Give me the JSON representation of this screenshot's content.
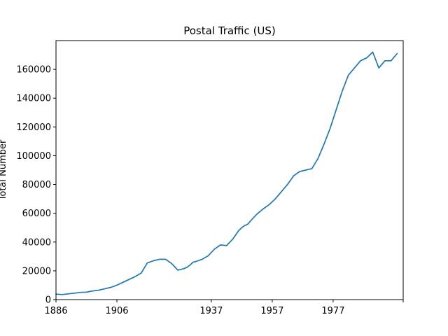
{
  "chart_data": {
    "type": "line",
    "title": "Postal Traffic (US)",
    "xlabel": "",
    "ylabel": "Total Number",
    "line_color": "#1f77b4",
    "grid": false,
    "xlim": [
      1886,
      2000
    ],
    "ylim": [
      0,
      180000
    ],
    "x_ticks": [
      1886,
      1906,
      1937,
      1957,
      1977
    ],
    "x_tick_labels": [
      "1886",
      "1906",
      "1937",
      "1957",
      "1977"
    ],
    "x_extra_tick": 2000,
    "y_ticks": [
      0,
      20000,
      40000,
      60000,
      80000,
      100000,
      120000,
      140000,
      160000
    ],
    "y_tick_labels": [
      "0",
      "20000",
      "40000",
      "60000",
      "80000",
      "100000",
      "120000",
      "140000",
      "160000"
    ],
    "series": [
      {
        "x": [
          1886,
          1888,
          1890,
          1892,
          1894,
          1896,
          1898,
          1900,
          1902,
          1904,
          1906,
          1908,
          1910,
          1912,
          1914,
          1916,
          1918,
          1920,
          1922,
          1924,
          1926,
          1928,
          1929,
          1930,
          1931,
          1932,
          1934,
          1936,
          1938,
          1940,
          1942,
          1944,
          1946,
          1947,
          1948,
          1949,
          1950,
          1952,
          1954,
          1956,
          1958,
          1960,
          1962,
          1964,
          1966,
          1968,
          1970,
          1972,
          1974,
          1976,
          1978,
          1980,
          1982,
          1984,
          1986,
          1988,
          1990,
          1992,
          1994,
          1996,
          1998
        ],
        "values": [
          3800,
          3500,
          4000,
          4500,
          5000,
          5200,
          6000,
          6500,
          7500,
          8500,
          10000,
          12000,
          14000,
          16000,
          18500,
          25500,
          27000,
          28000,
          28000,
          25000,
          20500,
          21500,
          22500,
          24000,
          26000,
          26500,
          28000,
          30500,
          35000,
          38000,
          37500,
          42000,
          48000,
          50000,
          51500,
          52500,
          55000,
          59500,
          63000,
          66000,
          70000,
          75000,
          80000,
          86000,
          89000,
          90000,
          91000,
          98000,
          108000,
          119000,
          132000,
          145000,
          156000,
          161000,
          166000,
          168000,
          172000,
          161000,
          166000,
          166000,
          171000
        ]
      }
    ]
  }
}
